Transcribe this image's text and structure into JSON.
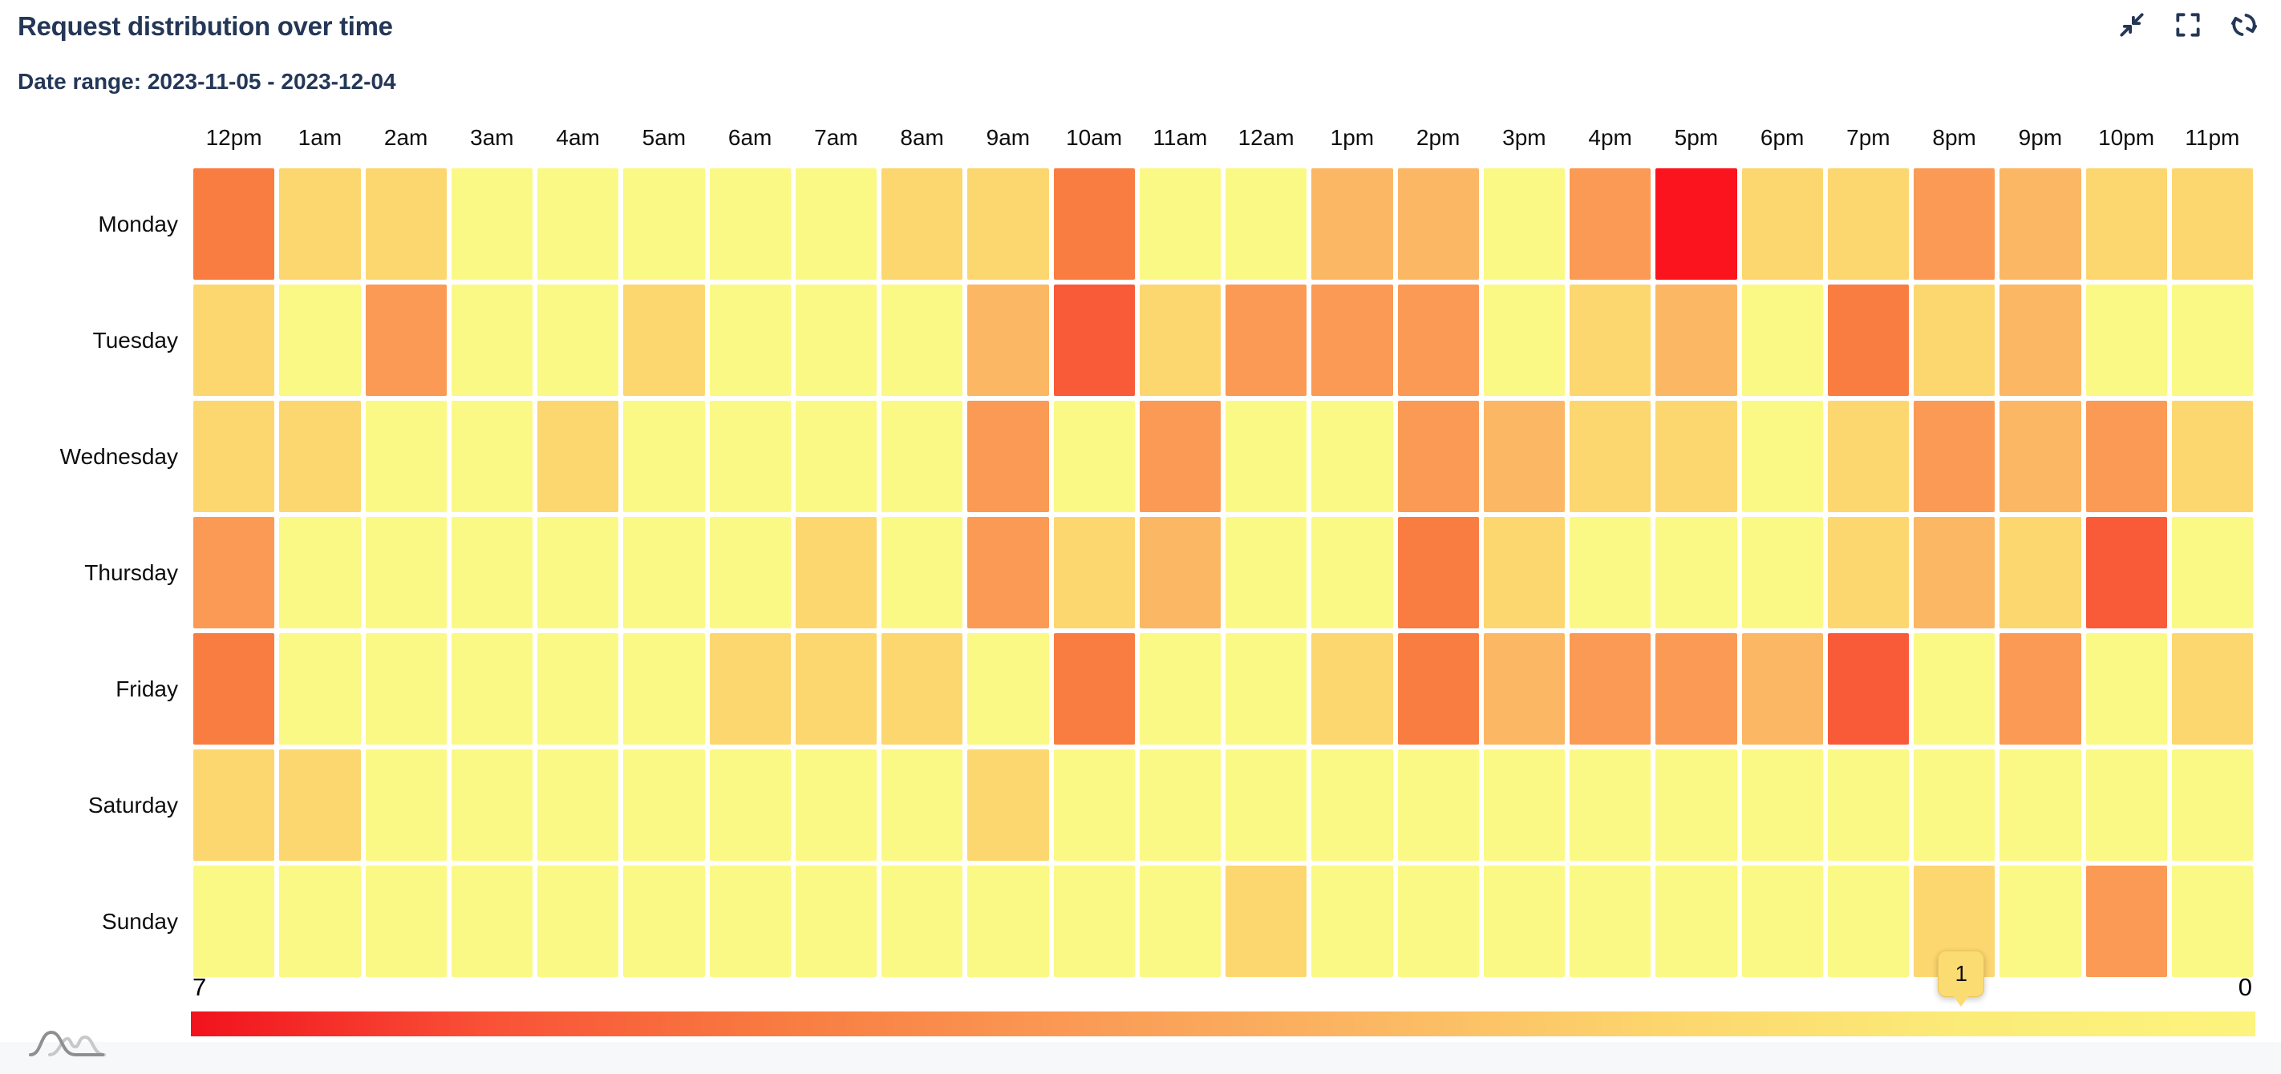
{
  "header": {
    "title": "Request distribution over time",
    "subtitle": "Date range: 2023-11-05 - 2023-12-04"
  },
  "toolbar": {
    "icons": [
      "collapse",
      "fullscreen",
      "refresh"
    ]
  },
  "colors": {
    "heading_text": "#243757",
    "icon_stroke": "#243757",
    "axis_text": "#0d0d0d",
    "footer_strip": "#F7F8F9",
    "cell_palette": {
      "0": "#FEFC91",
      "1": "#FBF985",
      "2": "#FCD66F",
      "3": "#FBB763",
      "4": "#FA9A55",
      "5": "#F97C41",
      "6": "#F95A38",
      "7": "#FB141D"
    },
    "legend_gradient": [
      "#F1121D",
      "#F95137",
      "#F87C41",
      "#FA9A55",
      "#FBB763",
      "#FCD66D",
      "#FBEB78",
      "#FCF47E"
    ],
    "badge_fill": "#FBDC72"
  },
  "chart_data": {
    "type": "heatmap",
    "title": "Request distribution over time",
    "x_labels": [
      "12pm",
      "1am",
      "2am",
      "3am",
      "4am",
      "5am",
      "6am",
      "7am",
      "8am",
      "9am",
      "10am",
      "11am",
      "12am",
      "1pm",
      "2pm",
      "3pm",
      "4pm",
      "5pm",
      "6pm",
      "7pm",
      "8pm",
      "9pm",
      "10pm",
      "11pm"
    ],
    "y_labels": [
      "Monday",
      "Tuesday",
      "Wednesday",
      "Thursday",
      "Friday",
      "Saturday",
      "Sunday"
    ],
    "value_range": [
      0,
      7
    ],
    "values": [
      [
        5,
        2,
        2,
        1,
        1,
        1,
        1,
        1,
        2,
        2,
        5,
        1,
        1,
        3,
        3,
        1,
        4,
        7,
        2,
        2,
        4,
        3,
        2,
        2
      ],
      [
        2,
        1,
        4,
        1,
        1,
        2,
        1,
        1,
        1,
        3,
        6,
        2,
        4,
        4,
        4,
        1,
        2,
        3,
        1,
        5,
        2,
        3,
        1,
        1
      ],
      [
        2,
        2,
        1,
        1,
        2,
        1,
        1,
        1,
        1,
        4,
        1,
        4,
        1,
        1,
        4,
        3,
        2,
        2,
        1,
        2,
        4,
        3,
        4,
        2
      ],
      [
        4,
        1,
        1,
        1,
        1,
        1,
        1,
        2,
        1,
        4,
        2,
        3,
        1,
        1,
        5,
        2,
        1,
        1,
        1,
        2,
        3,
        2,
        6,
        1
      ],
      [
        5,
        1,
        1,
        1,
        1,
        1,
        2,
        2,
        2,
        1,
        5,
        1,
        1,
        2,
        5,
        3,
        4,
        4,
        3,
        6,
        1,
        4,
        1,
        2
      ],
      [
        2,
        2,
        1,
        1,
        1,
        1,
        1,
        1,
        1,
        2,
        1,
        1,
        1,
        1,
        1,
        1,
        1,
        1,
        1,
        1,
        1,
        1,
        1,
        1
      ],
      [
        1,
        1,
        1,
        1,
        1,
        1,
        1,
        1,
        1,
        1,
        1,
        1,
        2,
        1,
        1,
        1,
        1,
        1,
        1,
        1,
        2,
        1,
        4,
        1
      ]
    ],
    "legend": {
      "left_label": "7",
      "right_label": "0",
      "marker_label": "1",
      "marker_value": 1
    }
  }
}
